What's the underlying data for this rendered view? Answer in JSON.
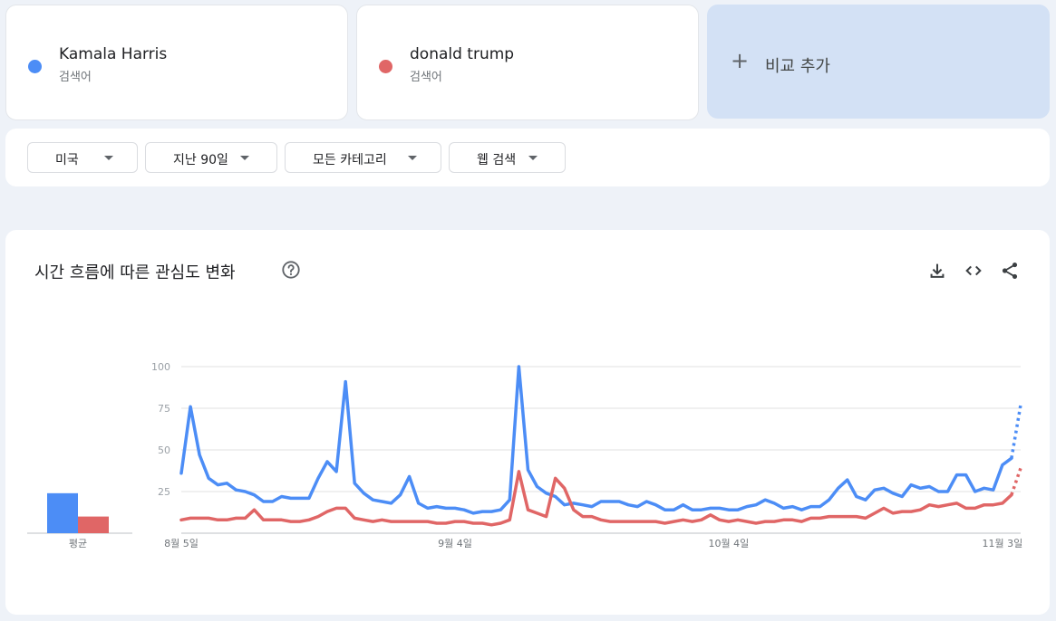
{
  "terms": [
    {
      "name": "Kamala Harris",
      "type": "검색어",
      "color": "#4c8df6"
    },
    {
      "name": "donald trump",
      "type": "검색어",
      "color": "#e06666"
    }
  ],
  "add_compare": {
    "label": "비교 추가",
    "icon": "plus-icon"
  },
  "filters": {
    "region": "미국",
    "period": "지난 90일",
    "category": "모든 카테고리",
    "search_type": "웹 검색"
  },
  "chart_section": {
    "title": "시간 흐름에 따른 관심도 변화",
    "icons": [
      "help-icon",
      "download-icon",
      "embed-icon",
      "share-icon"
    ]
  },
  "chart_data": {
    "type": "line",
    "title": "시간 흐름에 따른 관심도 변화",
    "ylim": [
      0,
      100
    ],
    "yticks": [
      25,
      50,
      75,
      100
    ],
    "grid": true,
    "x_tick_labels": [
      {
        "index": 0,
        "label": "8월 5일"
      },
      {
        "index": 30,
        "label": "9월 4일"
      },
      {
        "index": 60,
        "label": "10월 4일"
      },
      {
        "index": 90,
        "label": "11월 3일"
      }
    ],
    "partial_last_point": true,
    "series": [
      {
        "name": "Kamala Harris",
        "color": "#4c8df6",
        "values": [
          36,
          76,
          47,
          33,
          29,
          30,
          26,
          25,
          23,
          19,
          19,
          22,
          21,
          21,
          21,
          33,
          43,
          37,
          91,
          30,
          24,
          20,
          19,
          18,
          23,
          34,
          18,
          15,
          16,
          15,
          15,
          14,
          12,
          13,
          13,
          14,
          20,
          100,
          38,
          28,
          24,
          22,
          17,
          18,
          17,
          16,
          19,
          19,
          19,
          17,
          16,
          19,
          17,
          14,
          14,
          17,
          14,
          14,
          15,
          15,
          14,
          14,
          16,
          17,
          20,
          18,
          15,
          16,
          14,
          16,
          16,
          20,
          27,
          32,
          22,
          20,
          26,
          27,
          24,
          22,
          29,
          27,
          28,
          25,
          25,
          35,
          35,
          25,
          27,
          26,
          41,
          45,
          77
        ]
      },
      {
        "name": "donald trump",
        "color": "#e06666",
        "values": [
          8,
          9,
          9,
          9,
          8,
          8,
          9,
          9,
          14,
          8,
          8,
          8,
          7,
          7,
          8,
          10,
          13,
          15,
          15,
          9,
          8,
          7,
          8,
          7,
          7,
          7,
          7,
          7,
          6,
          6,
          7,
          7,
          6,
          6,
          5,
          6,
          8,
          37,
          14,
          12,
          10,
          33,
          27,
          14,
          10,
          10,
          8,
          7,
          7,
          7,
          7,
          7,
          7,
          6,
          7,
          8,
          7,
          8,
          11,
          8,
          7,
          8,
          7,
          6,
          7,
          7,
          8,
          8,
          7,
          9,
          9,
          10,
          10,
          10,
          10,
          9,
          12,
          15,
          12,
          13,
          13,
          14,
          17,
          16,
          17,
          18,
          15,
          15,
          17,
          17,
          18,
          23,
          39
        ]
      }
    ],
    "average_bars": {
      "label": "평균",
      "values": [
        {
          "name": "Kamala Harris",
          "value": 24,
          "color": "#4c8df6"
        },
        {
          "name": "donald trump",
          "value": 10,
          "color": "#e06666"
        }
      ]
    }
  }
}
